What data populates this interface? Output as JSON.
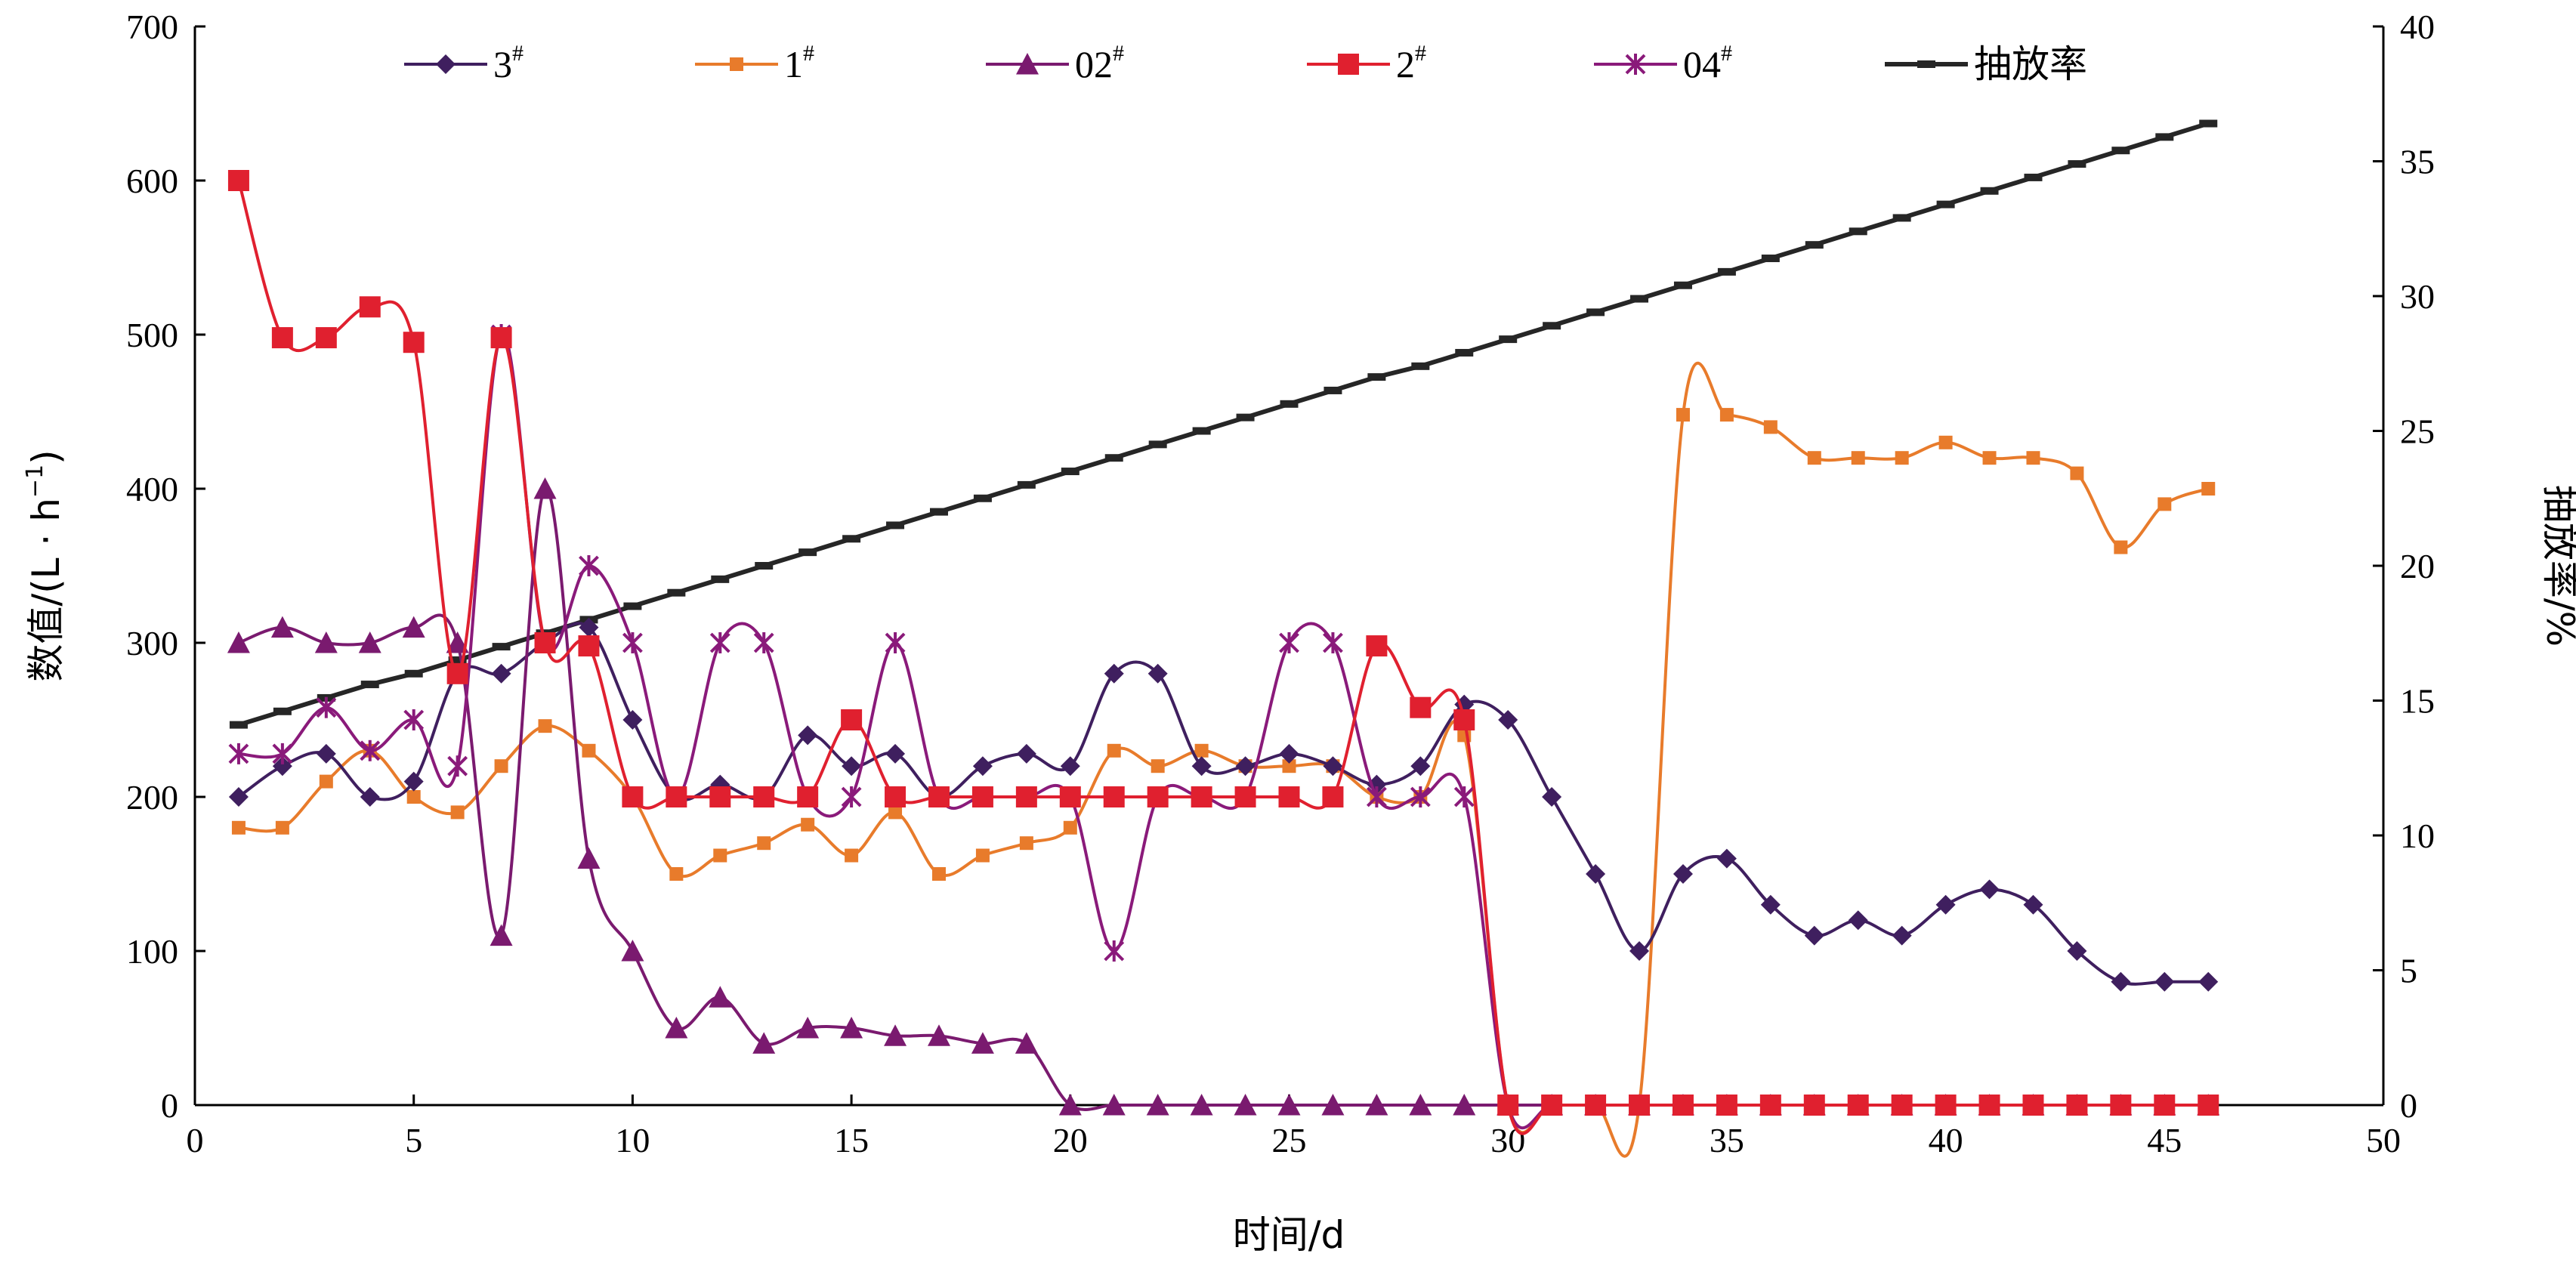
{
  "chart_data": {
    "type": "line",
    "xlabel": "时间/d",
    "ylabel_left": "数值/(L · h",
    "ylabel_left_sup": "−1",
    "ylabel_left_close": ")",
    "ylabel_right": "抽放率/%",
    "xlim": [
      0,
      50
    ],
    "ylim_left": [
      0,
      700
    ],
    "ylim_right": [
      0,
      40
    ],
    "x_ticks": [
      "0",
      "5",
      "10",
      "15",
      "20",
      "25",
      "30",
      "35",
      "40",
      "45",
      "50"
    ],
    "y_left_ticks": [
      "0",
      "100",
      "200",
      "300",
      "400",
      "500",
      "600",
      "700"
    ],
    "y_right_ticks": [
      "0",
      "5",
      "10",
      "15",
      "20",
      "25",
      "30",
      "35",
      "40"
    ],
    "grid": false,
    "legend_position": "top",
    "x": [
      1,
      2,
      3,
      4,
      5,
      6,
      7,
      8,
      9,
      10,
      11,
      12,
      13,
      14,
      15,
      16,
      17,
      18,
      19,
      20,
      21,
      22,
      23,
      24,
      25,
      26,
      27,
      28,
      29,
      30,
      31,
      32,
      33,
      34,
      35,
      36,
      37,
      38,
      39,
      40,
      41,
      42,
      43,
      44,
      45,
      46
    ],
    "series": [
      {
        "name": "3",
        "name_sup": "#",
        "axis": "left",
        "color": "#3f1f5f",
        "marker": "diamond",
        "values": [
          200,
          220,
          228,
          200,
          210,
          280,
          280,
          300,
          310,
          250,
          200,
          208,
          200,
          240,
          220,
          228,
          200,
          220,
          228,
          220,
          280,
          280,
          220,
          220,
          228,
          220,
          208,
          220,
          260,
          250,
          200,
          150,
          100,
          150,
          160,
          130,
          110,
          120,
          110,
          130,
          140,
          130,
          100,
          80,
          80,
          80
        ]
      },
      {
        "name": "1",
        "name_sup": "#",
        "axis": "left",
        "color": "#e87b2b",
        "marker": "square",
        "values": [
          180,
          180,
          210,
          230,
          200,
          190,
          220,
          246,
          230,
          200,
          150,
          162,
          170,
          182,
          162,
          190,
          150,
          162,
          170,
          180,
          230,
          220,
          230,
          220,
          220,
          220,
          200,
          200,
          240,
          0,
          0,
          0,
          0,
          448,
          448,
          440,
          420,
          420,
          420,
          430,
          420,
          420,
          410,
          362,
          390,
          400
        ]
      },
      {
        "name": "02",
        "name_sup": "#",
        "axis": "left",
        "color": "#7a1a6f",
        "marker": "triangle",
        "values": [
          300,
          310,
          300,
          300,
          310,
          300,
          110,
          400,
          160,
          100,
          50,
          70,
          40,
          50,
          50,
          45,
          45,
          40,
          40,
          0,
          0,
          0,
          0,
          0,
          0,
          0,
          0,
          0,
          0,
          0,
          0,
          0,
          0,
          0,
          0,
          0,
          0,
          0,
          0,
          0,
          0,
          0,
          0,
          0,
          0,
          0
        ]
      },
      {
        "name": "2",
        "name_sup": "#",
        "axis": "left",
        "color": "#e0202f",
        "marker": "square-large",
        "values": [
          600,
          498,
          498,
          518,
          495,
          280,
          498,
          300,
          298,
          200,
          200,
          200,
          200,
          200,
          250,
          200,
          200,
          200,
          200,
          200,
          200,
          200,
          200,
          200,
          200,
          200,
          298,
          258,
          250,
          0,
          0,
          0,
          0,
          0,
          0,
          0,
          0,
          0,
          0,
          0,
          0,
          0,
          0,
          0,
          0,
          0
        ]
      },
      {
        "name": "04",
        "name_sup": "#",
        "axis": "left",
        "color": "#8a1a7a",
        "marker": "star",
        "values": [
          228,
          228,
          258,
          230,
          250,
          220,
          500,
          300,
          350,
          300,
          200,
          300,
          300,
          200,
          200,
          300,
          200,
          200,
          200,
          200,
          100,
          200,
          200,
          200,
          300,
          300,
          200,
          200,
          200,
          0,
          0,
          0,
          0,
          0,
          0,
          0,
          0,
          0,
          0,
          0,
          0,
          0,
          0,
          0,
          0,
          0
        ]
      },
      {
        "name": "抽放率",
        "name_sup": "",
        "axis": "right",
        "color": "#262626",
        "marker": "dash",
        "values": [
          14.1,
          14.6,
          15.1,
          15.6,
          16.0,
          16.5,
          17.0,
          17.5,
          18.0,
          18.5,
          19.0,
          19.5,
          20.0,
          20.5,
          21.0,
          21.5,
          22.0,
          22.5,
          23.0,
          23.5,
          24.0,
          24.5,
          25.0,
          25.5,
          26.0,
          26.5,
          27.0,
          27.4,
          27.9,
          28.4,
          28.9,
          29.4,
          29.9,
          30.4,
          30.9,
          31.4,
          31.9,
          32.4,
          32.9,
          33.4,
          33.9,
          34.4,
          34.9,
          35.4,
          35.9,
          36.4
        ]
      }
    ]
  }
}
